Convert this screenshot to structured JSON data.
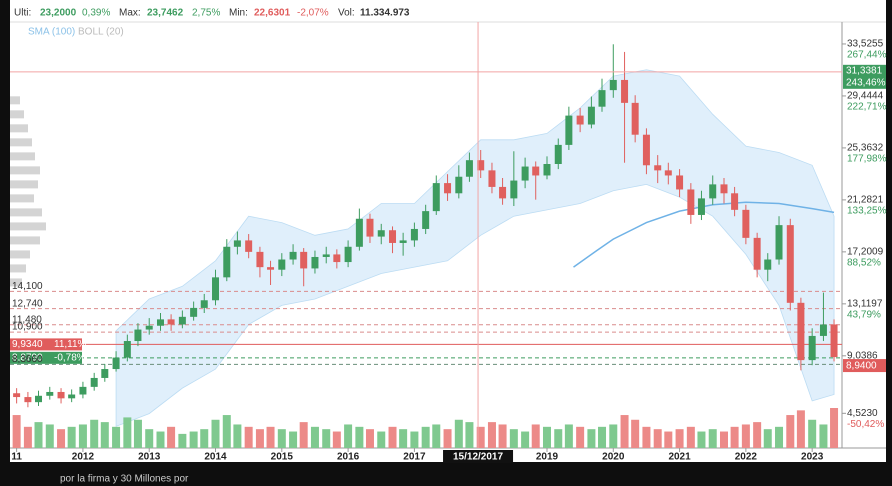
{
  "chart_data": {
    "type": "candlestick",
    "header": {
      "last_label": "Ulti:",
      "last": "23,2000",
      "last_pct": "0,39%",
      "max_label": "Max:",
      "max": "23,7462",
      "max_pct": "2,75%",
      "min_label": "Min:",
      "min": "22,6301",
      "min_pct": "-2,07%",
      "vol_label": "Vol:",
      "vol": "11.334.973"
    },
    "x": [
      2011.0,
      2011.17,
      2011.33,
      2011.5,
      2011.67,
      2011.83,
      2012.0,
      2012.17,
      2012.33,
      2012.5,
      2012.67,
      2012.83,
      2013.0,
      2013.17,
      2013.33,
      2013.5,
      2013.67,
      2013.83,
      2014.0,
      2014.17,
      2014.33,
      2014.5,
      2014.67,
      2014.83,
      2015.0,
      2015.17,
      2015.33,
      2015.5,
      2015.67,
      2015.83,
      2016.0,
      2016.17,
      2016.33,
      2016.5,
      2016.67,
      2016.83,
      2017.0,
      2017.17,
      2017.33,
      2017.5,
      2017.67,
      2017.83,
      2018.0,
      2018.17,
      2018.33,
      2018.5,
      2018.67,
      2018.83,
      2019.0,
      2019.17,
      2019.33,
      2019.5,
      2019.67,
      2019.83,
      2020.0,
      2020.17,
      2020.33,
      2020.5,
      2020.67,
      2020.83,
      2021.0,
      2021.17,
      2021.33,
      2021.5,
      2021.67,
      2021.83,
      2022.0,
      2022.17,
      2022.33,
      2022.5,
      2022.67,
      2022.83,
      2023.0,
      2023.17,
      2023.33
    ],
    "open": [
      6.1,
      5.8,
      5.4,
      5.9,
      6.2,
      5.7,
      6.0,
      6.6,
      7.3,
      8.0,
      8.9,
      10.2,
      11.1,
      11.4,
      11.9,
      11.5,
      12.1,
      12.8,
      13.4,
      15.2,
      17.6,
      18.1,
      17.2,
      16.0,
      15.8,
      16.6,
      17.2,
      15.9,
      16.8,
      17.0,
      16.4,
      17.6,
      19.8,
      18.4,
      18.9,
      17.9,
      18.1,
      19.0,
      20.4,
      22.6,
      21.8,
      23.1,
      24.4,
      23.6,
      22.3,
      21.4,
      22.8,
      23.9,
      23.2,
      24.1,
      25.6,
      27.9,
      27.2,
      28.6,
      29.9,
      30.7,
      28.9,
      26.4,
      24.0,
      23.6,
      23.2,
      22.1,
      20.1,
      21.4,
      22.5,
      21.8,
      20.5,
      18.3,
      15.8,
      16.6,
      19.3,
      13.2,
      8.7,
      10.6,
      11.5
    ],
    "high": [
      6.5,
      6.2,
      6.3,
      6.6,
      6.5,
      6.4,
      7.0,
      7.7,
      8.4,
      9.4,
      10.7,
      11.6,
      12.0,
      12.4,
      12.3,
      12.6,
      13.3,
      13.9,
      15.8,
      18.2,
      18.8,
      18.6,
      17.6,
      16.5,
      17.1,
      17.8,
      17.5,
      17.3,
      17.6,
      17.4,
      18.1,
      20.6,
      20.2,
      19.4,
      19.2,
      18.7,
      19.5,
      20.9,
      23.2,
      23.3,
      24.0,
      25.0,
      25.2,
      24.2,
      23.0,
      25.1,
      24.6,
      24.3,
      24.7,
      26.1,
      28.6,
      28.5,
      29.4,
      30.8,
      33.5,
      32.9,
      29.5,
      26.9,
      24.8,
      24.2,
      23.7,
      22.6,
      22.0,
      23.2,
      23.0,
      22.3,
      20.9,
      18.7,
      17.1,
      20.0,
      19.8,
      13.6,
      11.2,
      14.0,
      11.9
    ],
    "low": [
      5.3,
      5.0,
      5.1,
      5.6,
      5.3,
      5.4,
      5.7,
      6.3,
      7.0,
      7.8,
      8.6,
      9.8,
      10.7,
      11.0,
      11.0,
      11.2,
      11.8,
      12.4,
      13.0,
      14.9,
      17.0,
      16.7,
      15.2,
      14.6,
      15.3,
      16.2,
      14.5,
      15.5,
      16.3,
      15.9,
      16.0,
      17.3,
      17.9,
      17.8,
      17.1,
      16.9,
      17.6,
      18.6,
      20.1,
      21.2,
      21.4,
      22.7,
      23.0,
      21.8,
      20.9,
      20.8,
      22.2,
      21.3,
      22.9,
      23.7,
      25.2,
      26.6,
      26.9,
      28.2,
      29.3,
      24.2,
      25.8,
      23.3,
      22.6,
      22.5,
      21.5,
      19.4,
      19.7,
      20.9,
      21.0,
      20.0,
      17.8,
      15.2,
      14.9,
      16.2,
      12.6,
      7.9,
      8.3,
      10.2,
      8.6
    ],
    "close": [
      5.8,
      5.4,
      5.9,
      6.2,
      5.7,
      6.0,
      6.6,
      7.3,
      8.0,
      8.9,
      10.2,
      11.1,
      11.4,
      11.9,
      11.5,
      12.1,
      12.8,
      13.4,
      15.2,
      17.6,
      18.1,
      17.2,
      16.0,
      15.8,
      16.6,
      17.2,
      15.9,
      16.8,
      17.0,
      16.4,
      17.6,
      19.8,
      18.4,
      18.9,
      17.9,
      18.1,
      19.0,
      20.4,
      22.6,
      21.8,
      23.1,
      24.4,
      23.6,
      22.3,
      21.4,
      22.8,
      23.9,
      23.2,
      24.1,
      25.6,
      27.9,
      27.2,
      28.6,
      29.9,
      30.7,
      28.9,
      26.4,
      24.0,
      23.6,
      23.2,
      22.1,
      20.1,
      21.4,
      22.5,
      21.8,
      20.5,
      18.3,
      15.8,
      16.6,
      19.3,
      13.2,
      8.7,
      10.6,
      11.5,
      8.94
    ],
    "volume": [
      14,
      9,
      11,
      10,
      8,
      9,
      10,
      12,
      11,
      9,
      13,
      12,
      8,
      7,
      9,
      6,
      7,
      8,
      12,
      14,
      10,
      9,
      8,
      9,
      8,
      7,
      11,
      9,
      8,
      7,
      10,
      9,
      8,
      7,
      9,
      8,
      7,
      9,
      10,
      8,
      12,
      11,
      9,
      11,
      10,
      8,
      7,
      10,
      9,
      8,
      10,
      9,
      8,
      9,
      10,
      14,
      12,
      9,
      8,
      7,
      8,
      9,
      7,
      8,
      7,
      9,
      10,
      11,
      8,
      9,
      14,
      16,
      12,
      10,
      17
    ],
    "up_color": "#3d9c5f",
    "down_color": "#e0605e",
    "volume_up_color": "#7fc98f",
    "volume_down_color": "#ec8a88",
    "sma": {
      "name": "SMA (100)",
      "color": "#6fb2e6",
      "x": [
        2019.4,
        2019.75,
        2020.0,
        2020.5,
        2021.0,
        2021.5,
        2022.0,
        2022.5,
        2023.0,
        2023.33
      ],
      "values": [
        16.0,
        17.3,
        18.2,
        19.5,
        20.4,
        20.9,
        21.1,
        21.0,
        20.6,
        20.3
      ]
    },
    "bollinger": {
      "name": "BOLL (20)",
      "color": "#d6eaf9",
      "x": [
        2012.5,
        2013.0,
        2013.5,
        2014.0,
        2014.5,
        2015.0,
        2015.5,
        2016.0,
        2016.5,
        2017.0,
        2017.5,
        2018.0,
        2018.5,
        2019.0,
        2019.5,
        2020.0,
        2020.5,
        2021.0,
        2021.5,
        2022.0,
        2022.5,
        2023.0,
        2023.33
      ],
      "upper": [
        11.0,
        13.5,
        14.5,
        16.5,
        20.0,
        19.5,
        18.5,
        19.0,
        21.0,
        21.0,
        23.5,
        26.0,
        26.0,
        26.5,
        28.5,
        31.0,
        31.5,
        31.0,
        28.0,
        25.5,
        25.0,
        24.0,
        20.0
      ],
      "lower": [
        3.5,
        4.5,
        6.5,
        8.0,
        11.5,
        13.0,
        13.5,
        14.5,
        15.5,
        16.0,
        16.5,
        18.5,
        20.0,
        20.5,
        21.0,
        22.0,
        22.5,
        21.5,
        20.0,
        17.0,
        13.0,
        5.5,
        6.0
      ]
    },
    "levels": [
      {
        "value": 14.1,
        "label": "14,100"
      },
      {
        "value": 12.74,
        "label": "12,740"
      },
      {
        "value": 11.48,
        "label": "11,480"
      },
      {
        "value": 10.9,
        "label": "10,900"
      },
      {
        "value": 9.934,
        "label": "9,9340"
      },
      {
        "value": 8.879,
        "label": "8,8790"
      },
      {
        "value": 8.366,
        "label": "8,3660"
      }
    ],
    "level_pcts": [
      null,
      null,
      null,
      null,
      "11,11%",
      "-0,78%",
      null
    ],
    "level_colors": [
      "#d98c8c",
      "#d98c8c",
      "#d98c8c",
      "#d98c8c",
      "#e05c5c",
      "#3d9c5f",
      "#6a8f7a"
    ],
    "volume_profile": {
      "prices": [
        29.1,
        28.0,
        26.9,
        25.8,
        24.7,
        23.6,
        22.5,
        21.4,
        20.3,
        19.2,
        18.1,
        17.0,
        15.9,
        14.8
      ],
      "sizes": [
        10,
        14,
        18,
        22,
        25,
        30,
        28,
        24,
        32,
        36,
        30,
        20,
        16,
        12
      ]
    },
    "xlim": [
      2010.9,
      2023.45
    ],
    "ylim": [
      1.8,
      35.25
    ],
    "xticks": [
      {
        "value": 2011,
        "label": "11"
      },
      2012,
      2013,
      2014,
      2015,
      2016,
      2017,
      2019,
      2020,
      2021,
      2022,
      2023
    ],
    "yticks": [
      {
        "value": 33.5255,
        "label": "33,5255"
      },
      {
        "value": 29.4444,
        "label": "29,4444"
      },
      {
        "value": 25.3632,
        "label": "25,3632"
      },
      {
        "value": 21.2821,
        "label": "21,2821"
      },
      {
        "value": 17.2009,
        "label": "17,2009"
      },
      {
        "value": 13.1197,
        "label": "13,1197"
      },
      {
        "value": 9.0386,
        "label": "9,0386"
      },
      {
        "value": 4.523,
        "label": "4,5230"
      }
    ],
    "ytick_pcts": [
      "267,44%",
      "222,71%",
      "177,98%",
      "133,25%",
      "88,52%",
      "43,79%",
      null,
      "-50,42%"
    ],
    "crosshair": {
      "x": 2017.96,
      "x_label": "15/12/2017",
      "y": 31.3381,
      "y_label": "31,3381",
      "y_pct": "243,46%"
    },
    "last_price": {
      "value": 8.94,
      "label": "8,9400"
    },
    "footer_text": "por la firma y 30 Millones por"
  }
}
